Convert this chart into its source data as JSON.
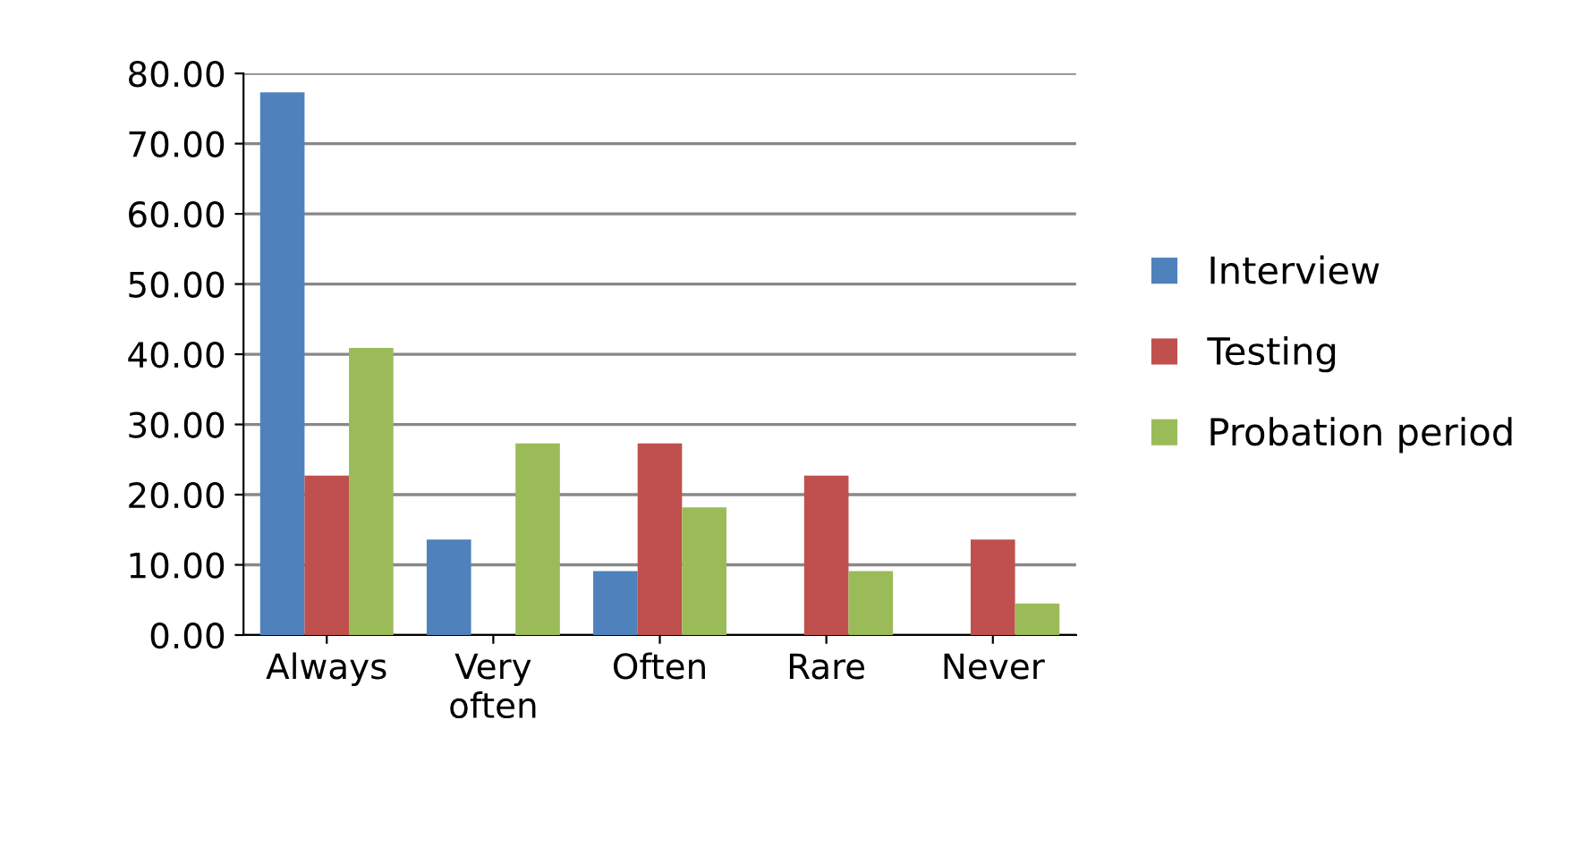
{
  "chart_data": {
    "type": "bar",
    "categories": [
      "Always",
      "Very\noften",
      "Often",
      "Rare",
      "Never"
    ],
    "series": [
      {
        "name": "Interview",
        "color": "#4f81bd",
        "values": [
          77.3,
          13.6,
          9.1,
          0,
          0
        ]
      },
      {
        "name": "Testing",
        "color": "#c0504d",
        "values": [
          22.7,
          0,
          27.3,
          22.7,
          13.6
        ]
      },
      {
        "name": "Probation period",
        "color": "#9bbb59",
        "values": [
          40.9,
          27.3,
          18.2,
          9.1,
          4.5
        ]
      }
    ],
    "ylim": [
      0,
      80
    ],
    "yticks": [
      {
        "value": 0,
        "label": "0.00"
      },
      {
        "value": 10,
        "label": "10.00"
      },
      {
        "value": 20,
        "label": "20.00"
      },
      {
        "value": 30,
        "label": "30.00"
      },
      {
        "value": 40,
        "label": "40.00"
      },
      {
        "value": 50,
        "label": "50.00"
      },
      {
        "value": 60,
        "label": "60.00"
      },
      {
        "value": 70,
        "label": "70.00"
      },
      {
        "value": 80,
        "label": "80.00"
      }
    ],
    "grid": "y",
    "legend": "right"
  }
}
